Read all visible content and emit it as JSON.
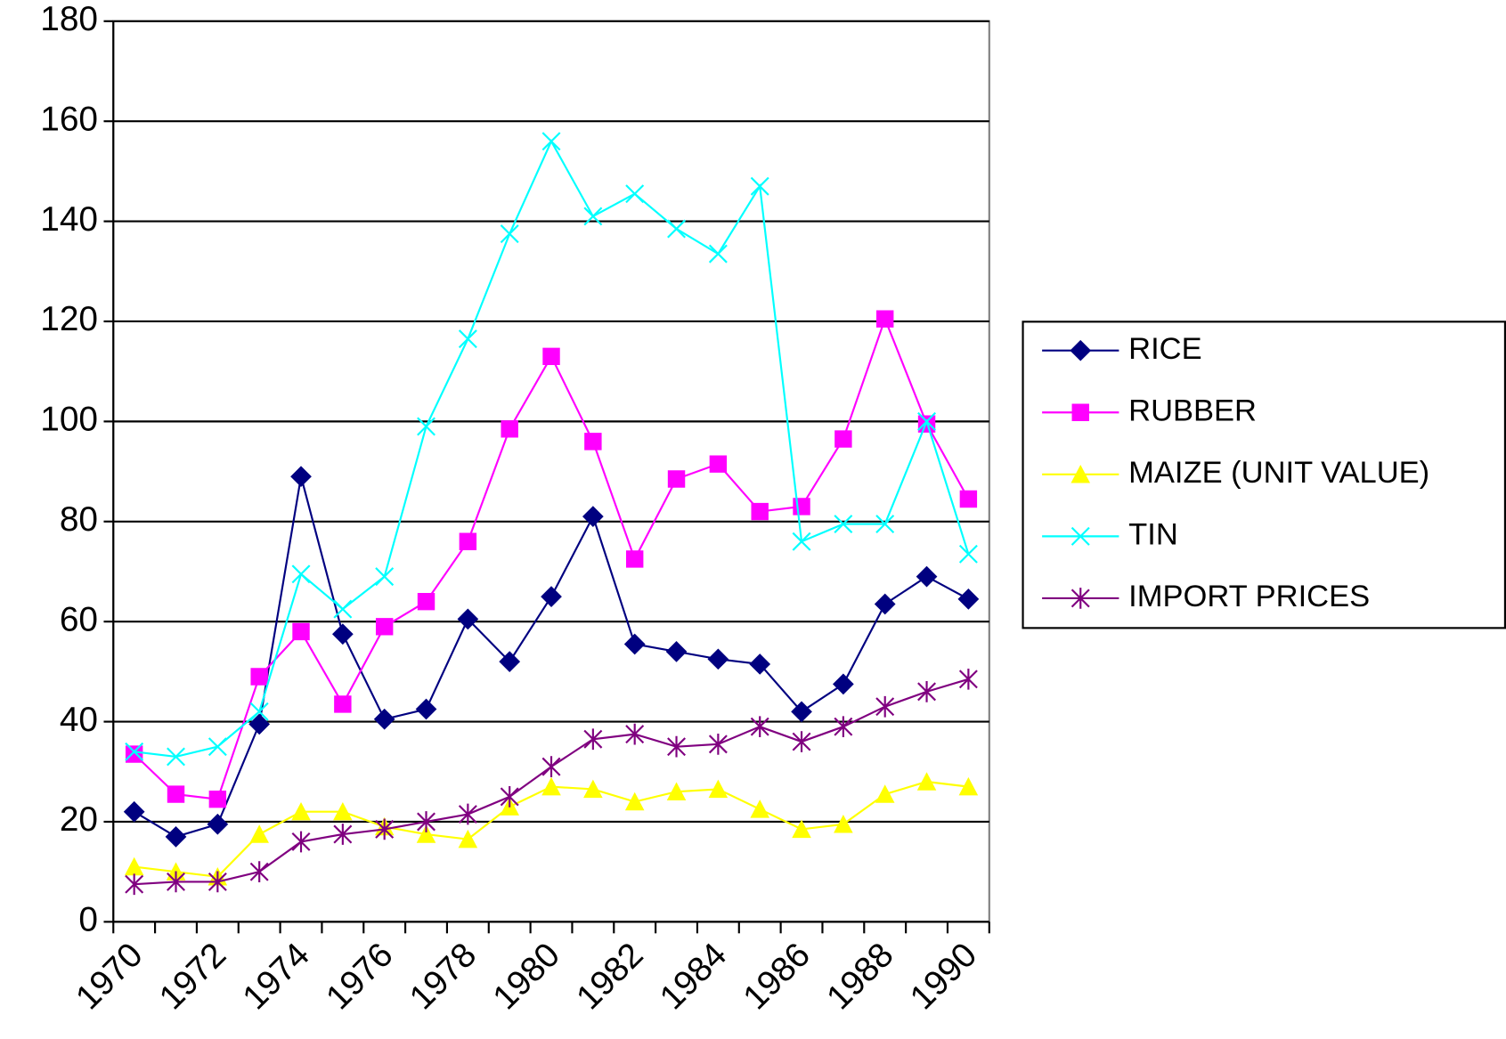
{
  "chart_data": {
    "type": "line",
    "categories": [
      "1970",
      null,
      "1972",
      null,
      "1974",
      null,
      "1976",
      null,
      "1978",
      null,
      "1980",
      null,
      "1982",
      null,
      "1984",
      null,
      "1986",
      null,
      "1988",
      null,
      "1990"
    ],
    "series": [
      {
        "name": "RICE",
        "color": "#000080",
        "marker": "diamond",
        "values": [
          22,
          17,
          19.5,
          39.5,
          89,
          57.5,
          40.5,
          42.5,
          60.5,
          52,
          65,
          81,
          55.5,
          54,
          52.5,
          51.5,
          42,
          47.5,
          63.5,
          69,
          64.5
        ]
      },
      {
        "name": "RUBBER",
        "color": "#ff00ff",
        "marker": "square",
        "values": [
          33.5,
          25.5,
          24.5,
          49,
          58,
          43.5,
          59,
          64,
          76,
          98.5,
          113,
          96,
          72.5,
          88.5,
          91.5,
          82,
          83,
          96.5,
          120.5,
          99.5,
          84.5
        ]
      },
      {
        "name": "MAIZE (UNIT VALUE)",
        "color": "#ffff00",
        "marker": "triangle",
        "values": [
          11,
          10,
          9,
          17.5,
          22,
          22,
          19,
          17.5,
          16.5,
          23,
          27,
          26.5,
          24,
          26,
          26.5,
          22.5,
          18.5,
          19.5,
          25.5,
          28,
          27
        ]
      },
      {
        "name": "TIN",
        "color": "#00ffff",
        "marker": "x",
        "values": [
          34,
          33,
          35,
          42,
          69.5,
          62.5,
          69,
          99,
          116.5,
          137.5,
          156,
          141,
          145.5,
          138.5,
          133.5,
          147,
          76,
          79.5,
          79.5,
          100,
          73.5
        ]
      },
      {
        "name": "IMPORT PRICES",
        "color": "#800080",
        "marker": "asterisk",
        "values": [
          7.5,
          8,
          8,
          10,
          16,
          17.5,
          18.5,
          20,
          21.5,
          25,
          31,
          36.5,
          37.5,
          35,
          35.5,
          39,
          36,
          39,
          43,
          46,
          48.5
        ]
      }
    ],
    "ylim": [
      0,
      180
    ],
    "yticks": [
      0,
      20,
      40,
      60,
      80,
      100,
      120,
      140,
      160,
      180
    ],
    "grid": true,
    "legend": "right"
  }
}
